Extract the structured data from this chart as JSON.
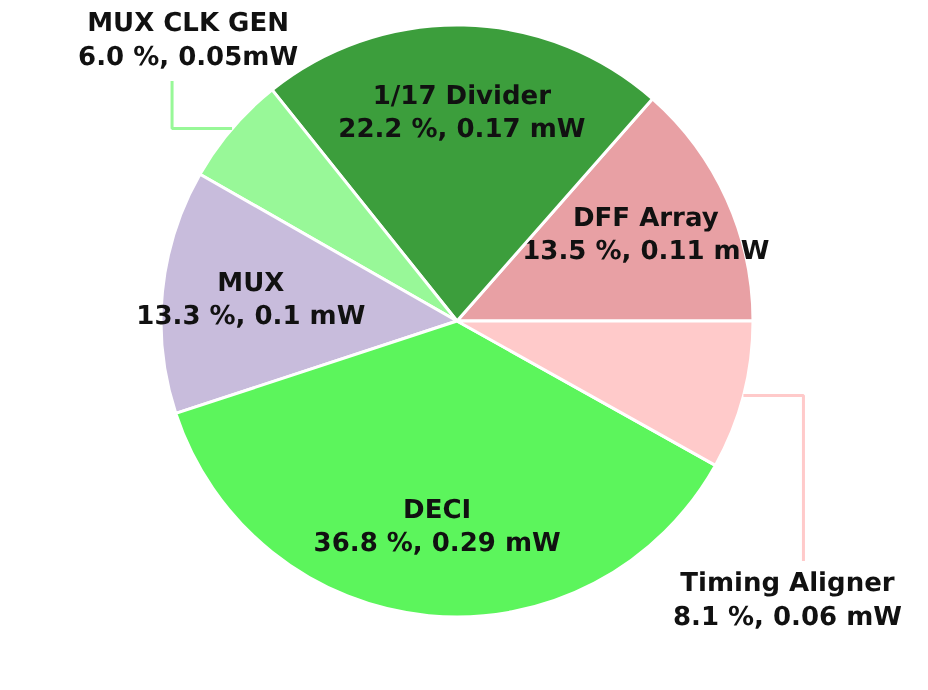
{
  "chart_data": {
    "type": "pie",
    "categories": [
      "DFF Array",
      "1/17 Divider",
      "MUX CLK GEN",
      "MUX",
      "DECI",
      "Timing Aligner"
    ],
    "values": [
      13.5,
      22.2,
      6.0,
      13.3,
      36.8,
      8.1
    ],
    "value_labels": [
      "13.5 %, 0.11 mW",
      "22.2 %, 0.17 mW",
      "6.0 %, 0.05mW",
      "13.3 %, 0.1 mW",
      "36.8 %, 0.29 mW",
      "8.1 %, 0.06 mW"
    ],
    "colors": [
      "#e8a0a4",
      "#3c9e3c",
      "#98f898",
      "#c8bcdc",
      "#5cf55c",
      "#ffcaca"
    ]
  }
}
